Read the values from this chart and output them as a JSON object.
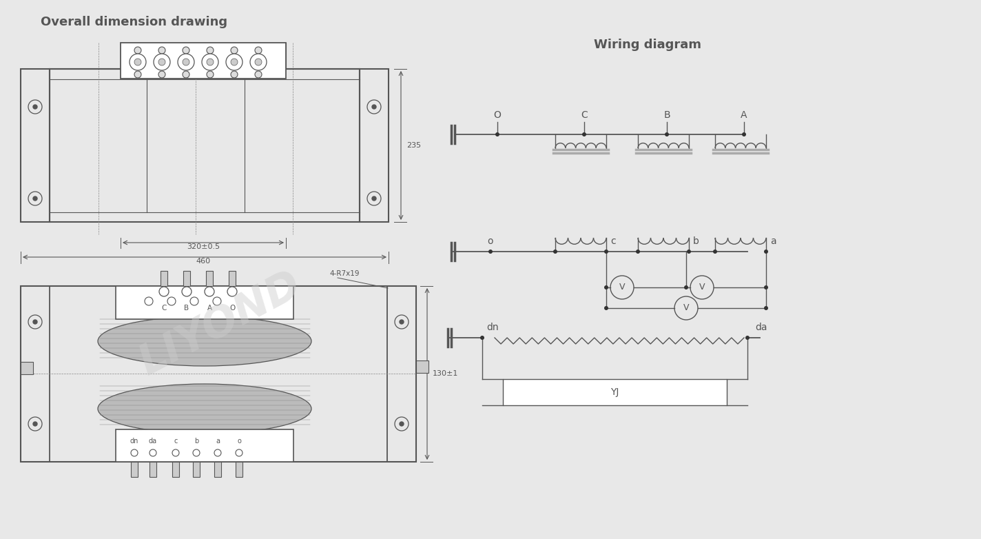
{
  "bg_color": "#e8e8e8",
  "line_color": "#555555",
  "title1": "Overall dimension drawing",
  "title2": "Wiring diagram",
  "watermark": "LIYOND",
  "dim_320": "320±0.5",
  "dim_460": "460",
  "dim_235": "235",
  "dim_130": "130±1",
  "dim_4R7x19": "4-R7x19",
  "primary_labels": [
    "O",
    "C",
    "B",
    "A"
  ],
  "secondary_labels": [
    "o",
    "c",
    "b",
    "a"
  ],
  "bottom_labels": [
    "dn",
    "da",
    "c",
    "b",
    "a",
    "o"
  ],
  "top_labels": [
    "C",
    "B",
    "A",
    "O"
  ]
}
